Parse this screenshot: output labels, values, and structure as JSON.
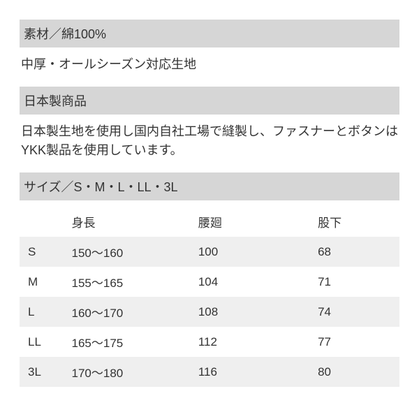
{
  "material": {
    "header": "素材／綿100%",
    "text": "中厚・オールシーズン対応生地"
  },
  "origin": {
    "header": "日本製商品",
    "text": "日本製生地を使用し国内自社工場で縫製し、ファスナーとボタンはYKK製品を使用しています。"
  },
  "sizing": {
    "header": "サイズ／S・M・L・LL・3L",
    "columns": {
      "size": "",
      "height": "身長",
      "waist": "腰廻",
      "inseam": "股下"
    },
    "rows": [
      {
        "size": "S",
        "height": "150～160",
        "waist": "100",
        "inseam": "68"
      },
      {
        "size": "M",
        "height": "155～165",
        "waist": "104",
        "inseam": "71"
      },
      {
        "size": "L",
        "height": "160～170",
        "waist": "108",
        "inseam": "74"
      },
      {
        "size": "LL",
        "height": "165～175",
        "waist": "112",
        "inseam": "77"
      },
      {
        "size": "3L",
        "height": "170～180",
        "waist": "116",
        "inseam": "80"
      }
    ],
    "table_style": {
      "zebra_color": "#efefef",
      "header_bg": "#d6d6d6",
      "text_color": "#333333",
      "font_size": 17
    }
  }
}
